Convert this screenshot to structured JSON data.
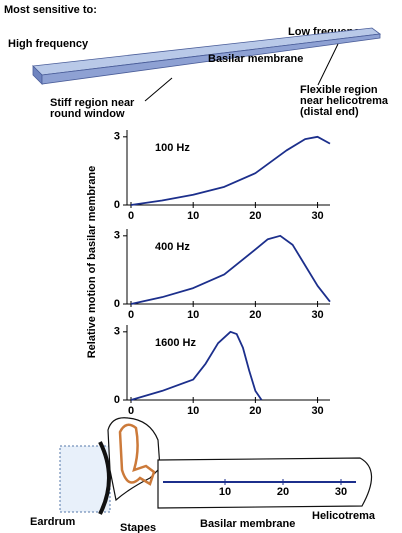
{
  "header": {
    "title": "Most sensitive to:"
  },
  "membrane": {
    "left_label": "High frequency",
    "right_label": "Low frequency",
    "name": "Basilar membrane",
    "stiff_note": [
      "Stiff region near",
      "round window"
    ],
    "flexible_note": [
      "Flexible region",
      "near helicotrema",
      "(distal end)"
    ]
  },
  "shared_y_label": "Relative motion of basilar membrane",
  "chart_data": [
    {
      "type": "line",
      "annotation": "100 Hz",
      "color": "#1c2f8c",
      "x": [
        0,
        5,
        10,
        15,
        20,
        25,
        28,
        30,
        32
      ],
      "values": [
        0,
        0.2,
        0.45,
        0.8,
        1.4,
        2.4,
        2.9,
        3.0,
        2.7
      ],
      "xlim": [
        0,
        32
      ],
      "ylim": [
        0,
        3.3
      ],
      "xticks": [
        0,
        10,
        20,
        30
      ],
      "yticks": [
        0,
        3
      ]
    },
    {
      "type": "line",
      "annotation": "400 Hz",
      "color": "#1c2f8c",
      "x": [
        0,
        5,
        10,
        15,
        20,
        22,
        24,
        26,
        28,
        30,
        32
      ],
      "values": [
        0,
        0.3,
        0.7,
        1.3,
        2.4,
        2.85,
        3.0,
        2.6,
        1.7,
        0.8,
        0.1
      ],
      "xlim": [
        0,
        32
      ],
      "ylim": [
        0,
        3.3
      ],
      "xticks": [
        0,
        10,
        20,
        30
      ],
      "yticks": [
        0,
        3
      ]
    },
    {
      "type": "line",
      "annotation": "1600 Hz",
      "color": "#1c2f8c",
      "x": [
        0,
        5,
        10,
        12,
        14,
        16,
        17,
        18,
        19,
        20,
        21
      ],
      "values": [
        0,
        0.4,
        0.9,
        1.6,
        2.5,
        3.0,
        2.9,
        2.3,
        1.3,
        0.4,
        0
      ],
      "xlim": [
        0,
        32
      ],
      "ylim": [
        0,
        3.3
      ],
      "xticks": [
        0,
        10,
        20,
        30
      ],
      "yticks": [
        0,
        3
      ]
    }
  ],
  "cochlea": {
    "scale_ticks": [
      10,
      20,
      30
    ],
    "labels": {
      "eardrum": "Eardrum",
      "stapes": "Stapes",
      "membrane": "Basilar membrane",
      "helicotrema": "Helicotrema"
    }
  }
}
